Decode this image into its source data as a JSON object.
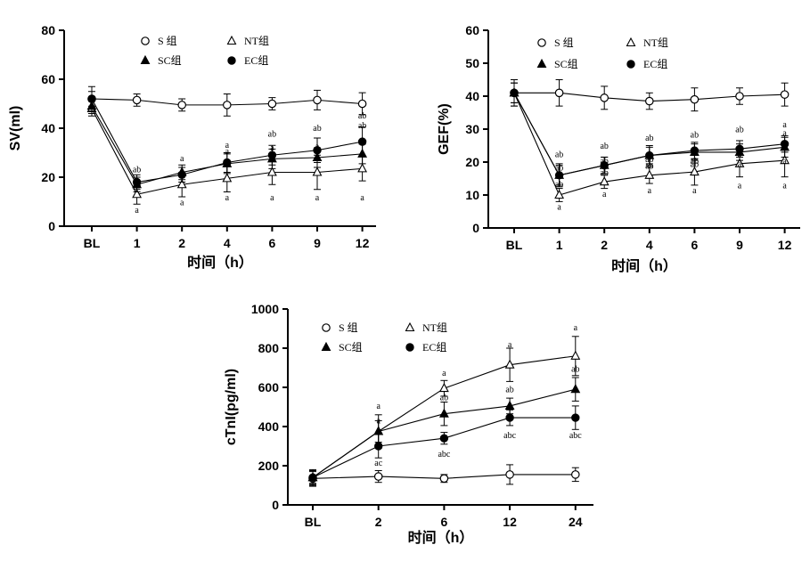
{
  "chart_data": [
    {
      "type": "line",
      "ylabel": "SV(ml)",
      "xlabel": "时间（h）",
      "categories": [
        "BL",
        "1",
        "2",
        "4",
        "6",
        "9",
        "12"
      ],
      "ylim": [
        0,
        80
      ],
      "yticks": [
        0,
        20,
        40,
        60,
        80
      ],
      "legend": [
        "S 组",
        "NT组",
        "SC组",
        "EC组"
      ],
      "series": [
        {
          "name": "S 组",
          "marker": "circle-open",
          "values": [
            52,
            51.5,
            49.5,
            49.5,
            50,
            51.5,
            50
          ],
          "err": [
            3,
            2.5,
            2.5,
            4.5,
            2.5,
            4,
            4.5
          ]
        },
        {
          "name": "NT组",
          "marker": "triangle-open",
          "values": [
            48,
            13,
            17,
            19.5,
            22,
            22,
            23.5
          ],
          "err": [
            3,
            4,
            5,
            5.5,
            5,
            7,
            5
          ]
        },
        {
          "name": "SC组",
          "marker": "triangle-filled",
          "values": [
            49,
            17,
            22,
            25.5,
            27.5,
            28,
            29.5
          ],
          "err": [
            3,
            3,
            3,
            4,
            4,
            4,
            4
          ]
        },
        {
          "name": "EC组",
          "marker": "circle-filled",
          "values": [
            52,
            18,
            21,
            26,
            29,
            31,
            34.5
          ],
          "err": [
            5,
            3,
            3,
            4,
            4,
            5,
            6
          ]
        }
      ],
      "annotations": [
        {
          "text": "ab",
          "cat": 1,
          "y": 22
        },
        {
          "text": "ab",
          "cat": 1,
          "y": 15.5
        },
        {
          "text": "a",
          "cat": 1,
          "y": 5.5
        },
        {
          "text": "a",
          "cat": 2,
          "y": 26.5
        },
        {
          "text": "a",
          "cat": 2,
          "y": 8.5
        },
        {
          "text": "a",
          "cat": 3,
          "y": 32
        },
        {
          "text": "a",
          "cat": 3,
          "y": 29.5
        },
        {
          "text": "a",
          "cat": 3,
          "y": 10.5
        },
        {
          "text": "ab",
          "cat": 4,
          "y": 36.5
        },
        {
          "text": "a",
          "cat": 4,
          "y": 31
        },
        {
          "text": "a",
          "cat": 4,
          "y": 10.5
        },
        {
          "text": "ab",
          "cat": 5,
          "y": 39
        },
        {
          "text": "a",
          "cat": 5,
          "y": 31.5
        },
        {
          "text": "a",
          "cat": 5,
          "y": 10.5
        },
        {
          "text": "ab",
          "cat": 6,
          "y": 44
        },
        {
          "text": "ab",
          "cat": 6,
          "y": 40
        },
        {
          "text": "a",
          "cat": 6,
          "y": 33
        },
        {
          "text": "a",
          "cat": 6,
          "y": 10.5
        }
      ]
    },
    {
      "type": "line",
      "ylabel": "GEF(%)",
      "xlabel": "时间（h）",
      "categories": [
        "BL",
        "1",
        "2",
        "4",
        "6",
        "9",
        "12"
      ],
      "ylim": [
        0,
        60
      ],
      "yticks": [
        0,
        10,
        20,
        30,
        40,
        50,
        60
      ],
      "legend": [
        "S 组",
        "NT组",
        "SC组",
        "EC组"
      ],
      "series": [
        {
          "name": "S 组",
          "marker": "circle-open",
          "values": [
            41,
            41,
            39.5,
            38.5,
            39,
            40,
            40.5
          ],
          "err": [
            4,
            4,
            3.5,
            2.5,
            3.5,
            2.5,
            3.5
          ]
        },
        {
          "name": "NT组",
          "marker": "triangle-open",
          "values": [
            41,
            10,
            14,
            16,
            17,
            19.5,
            20.5
          ],
          "err": [
            3,
            2,
            2,
            2.5,
            4,
            4,
            5
          ]
        },
        {
          "name": "SC组",
          "marker": "triangle-filled",
          "values": [
            41,
            16,
            19,
            22,
            23,
            23,
            24.5
          ],
          "err": [
            3,
            3,
            2.5,
            3,
            2.5,
            2.5,
            3
          ]
        },
        {
          "name": "EC组",
          "marker": "circle-filled",
          "values": [
            41,
            16,
            19,
            22,
            23.5,
            24,
            25.5
          ],
          "err": [
            4,
            3.5,
            2.5,
            2.5,
            2.5,
            2.5,
            2.5
          ]
        }
      ],
      "annotations": [
        {
          "text": "ab",
          "cat": 1,
          "y": 21.5
        },
        {
          "text": "ab",
          "cat": 1,
          "y": 17.5
        },
        {
          "text": "ab",
          "cat": 1,
          "y": 12.5
        },
        {
          "text": "a",
          "cat": 1,
          "y": 5.5
        },
        {
          "text": "ab",
          "cat": 2,
          "y": 24
        },
        {
          "text": "ab",
          "cat": 2,
          "y": 19.5
        },
        {
          "text": "ab",
          "cat": 2,
          "y": 16
        },
        {
          "text": "a",
          "cat": 2,
          "y": 9.5
        },
        {
          "text": "ab",
          "cat": 3,
          "y": 26.5
        },
        {
          "text": "ab",
          "cat": 3,
          "y": 20
        },
        {
          "text": "ab",
          "cat": 3,
          "y": 18
        },
        {
          "text": "a",
          "cat": 3,
          "y": 10.5
        },
        {
          "text": "ab",
          "cat": 4,
          "y": 27.5
        },
        {
          "text": "ab",
          "cat": 4,
          "y": 19.5
        },
        {
          "text": "ab",
          "cat": 4,
          "y": 18.5
        },
        {
          "text": "a",
          "cat": 4,
          "y": 10.5
        },
        {
          "text": "ab",
          "cat": 5,
          "y": 29
        },
        {
          "text": "a",
          "cat": 5,
          "y": 21.5
        },
        {
          "text": "a",
          "cat": 5,
          "y": 18.5
        },
        {
          "text": "a",
          "cat": 5,
          "y": 12
        },
        {
          "text": "a",
          "cat": 6,
          "y": 30.5
        },
        {
          "text": "a",
          "cat": 6,
          "y": 28
        },
        {
          "text": "a",
          "cat": 6,
          "y": 19.5
        },
        {
          "text": "a",
          "cat": 6,
          "y": 12
        }
      ]
    },
    {
      "type": "line",
      "ylabel": "cTnI(pg/ml)",
      "xlabel": "时间（h）",
      "categories": [
        "BL",
        "2",
        "6",
        "12",
        "24"
      ],
      "ylim": [
        0,
        1000
      ],
      "yticks": [
        0,
        200,
        400,
        600,
        800,
        1000
      ],
      "legend": [
        "S 组",
        "NT组",
        "SC组",
        "EC组"
      ],
      "series": [
        {
          "name": "S 组",
          "marker": "circle-open",
          "values": [
            135,
            145,
            135,
            155,
            155
          ],
          "err": [
            40,
            30,
            20,
            50,
            35
          ]
        },
        {
          "name": "NT组",
          "marker": "triangle-open",
          "values": [
            140,
            375,
            595,
            715,
            760
          ],
          "err": [
            35,
            85,
            40,
            85,
            100
          ]
        },
        {
          "name": "SC组",
          "marker": "triangle-filled",
          "values": [
            140,
            375,
            465,
            505,
            590
          ],
          "err": [
            30,
            55,
            60,
            40,
            60
          ]
        },
        {
          "name": "EC组",
          "marker": "circle-filled",
          "values": [
            140,
            300,
            340,
            445,
            445
          ],
          "err": [
            40,
            60,
            30,
            40,
            60
          ]
        }
      ],
      "annotations": [
        {
          "text": "a",
          "cat": 1,
          "y": 490
        },
        {
          "text": "a",
          "cat": 1,
          "y": 415
        },
        {
          "text": "ac",
          "cat": 1,
          "y": 200
        },
        {
          "text": "a",
          "cat": 2,
          "y": 660
        },
        {
          "text": "ab",
          "cat": 2,
          "y": 535
        },
        {
          "text": "abc",
          "cat": 2,
          "y": 245
        },
        {
          "text": "a",
          "cat": 3,
          "y": 805
        },
        {
          "text": "ab",
          "cat": 3,
          "y": 575
        },
        {
          "text": "abc",
          "cat": 3,
          "y": 340
        },
        {
          "text": "a",
          "cat": 4,
          "y": 890
        },
        {
          "text": "ab",
          "cat": 4,
          "y": 680
        },
        {
          "text": "abc",
          "cat": 4,
          "y": 340
        }
      ]
    }
  ]
}
